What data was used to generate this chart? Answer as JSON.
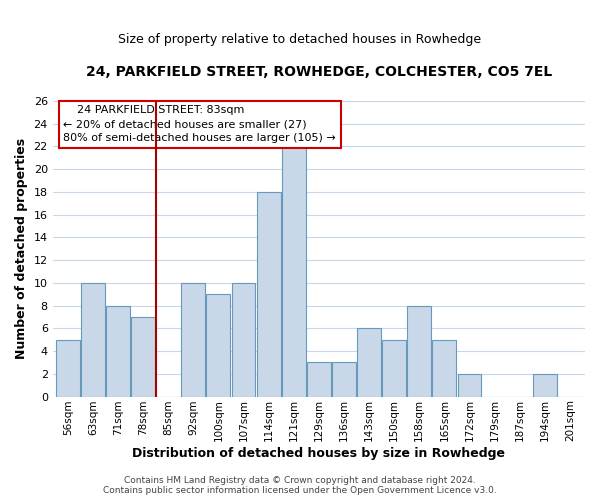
{
  "title": "24, PARKFIELD STREET, ROWHEDGE, COLCHESTER, CO5 7EL",
  "subtitle": "Size of property relative to detached houses in Rowhedge",
  "xlabel": "Distribution of detached houses by size in Rowhedge",
  "ylabel": "Number of detached properties",
  "footer_line1": "Contains HM Land Registry data © Crown copyright and database right 2024.",
  "footer_line2": "Contains public sector information licensed under the Open Government Licence v3.0.",
  "bin_labels": [
    "56sqm",
    "63sqm",
    "71sqm",
    "78sqm",
    "85sqm",
    "92sqm",
    "100sqm",
    "107sqm",
    "114sqm",
    "121sqm",
    "129sqm",
    "136sqm",
    "143sqm",
    "150sqm",
    "158sqm",
    "165sqm",
    "172sqm",
    "179sqm",
    "187sqm",
    "194sqm",
    "201sqm"
  ],
  "bar_heights": [
    5,
    10,
    8,
    7,
    0,
    10,
    9,
    10,
    18,
    22,
    3,
    3,
    6,
    5,
    8,
    5,
    2,
    0,
    0,
    2,
    0
  ],
  "bar_color": "#c8d8e8",
  "bar_edge_color": "#6699bb",
  "bar_edge_width": 0.8,
  "vline_color": "#aa0000",
  "vline_x_index": 4,
  "ylim": [
    0,
    26
  ],
  "yticks": [
    0,
    2,
    4,
    6,
    8,
    10,
    12,
    14,
    16,
    18,
    20,
    22,
    24,
    26
  ],
  "annotation_title": "24 PARKFIELD STREET: 83sqm",
  "annotation_line1": "← 20% of detached houses are smaller (27)",
  "annotation_line2": "80% of semi-detached houses are larger (105) →",
  "grid_color": "#c8d8e8",
  "background_color": "#ffffff",
  "plot_bg_color": "#ffffff",
  "title_fontsize": 10,
  "subtitle_fontsize": 9,
  "ylabel_fontsize": 9,
  "xlabel_fontsize": 9
}
